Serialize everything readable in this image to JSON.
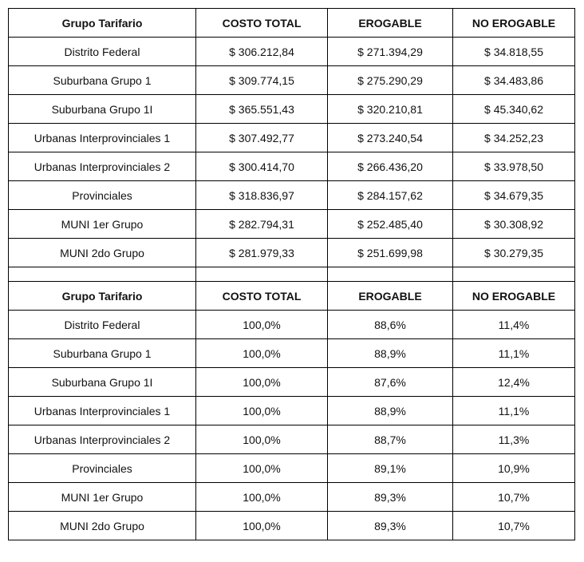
{
  "headers": [
    "Grupo Tarifario",
    "COSTO TOTAL",
    "EROGABLE",
    "NO EROGABLE"
  ],
  "amounts": [
    [
      "Distrito Federal",
      "$ 306.212,84",
      "$ 271.394,29",
      "$ 34.818,55"
    ],
    [
      "Suburbana Grupo 1",
      "$ 309.774,15",
      "$ 275.290,29",
      "$ 34.483,86"
    ],
    [
      "Suburbana Grupo 1I",
      "$ 365.551,43",
      "$ 320.210,81",
      "$ 45.340,62"
    ],
    [
      "Urbanas Interprovinciales 1",
      "$ 307.492,77",
      "$ 273.240,54",
      "$ 34.252,23"
    ],
    [
      "Urbanas Interprovinciales 2",
      "$ 300.414,70",
      "$ 266.436,20",
      "$ 33.978,50"
    ],
    [
      "Provinciales",
      "$ 318.836,97",
      "$ 284.157,62",
      "$ 34.679,35"
    ],
    [
      "MUNI 1er Grupo",
      "$ 282.794,31",
      "$ 252.485,40",
      "$ 30.308,92"
    ],
    [
      "MUNI 2do Grupo",
      "$ 281.979,33",
      "$ 251.699,98",
      "$ 30.279,35"
    ]
  ],
  "percentages": [
    [
      "Distrito Federal",
      "100,0%",
      "88,6%",
      "11,4%"
    ],
    [
      "Suburbana Grupo 1",
      "100,0%",
      "88,9%",
      "11,1%"
    ],
    [
      "Suburbana Grupo 1I",
      "100,0%",
      "87,6%",
      "12,4%"
    ],
    [
      "Urbanas Interprovinciales 1",
      "100,0%",
      "88,9%",
      "11,1%"
    ],
    [
      "Urbanas Interprovinciales 2",
      "100,0%",
      "88,7%",
      "11,3%"
    ],
    [
      "Provinciales",
      "100,0%",
      "89,1%",
      "10,9%"
    ],
    [
      "MUNI 1er Grupo",
      "100,0%",
      "89,3%",
      "10,7%"
    ],
    [
      "MUNI 2do Grupo",
      "100,0%",
      "89,3%",
      "10,7%"
    ]
  ]
}
